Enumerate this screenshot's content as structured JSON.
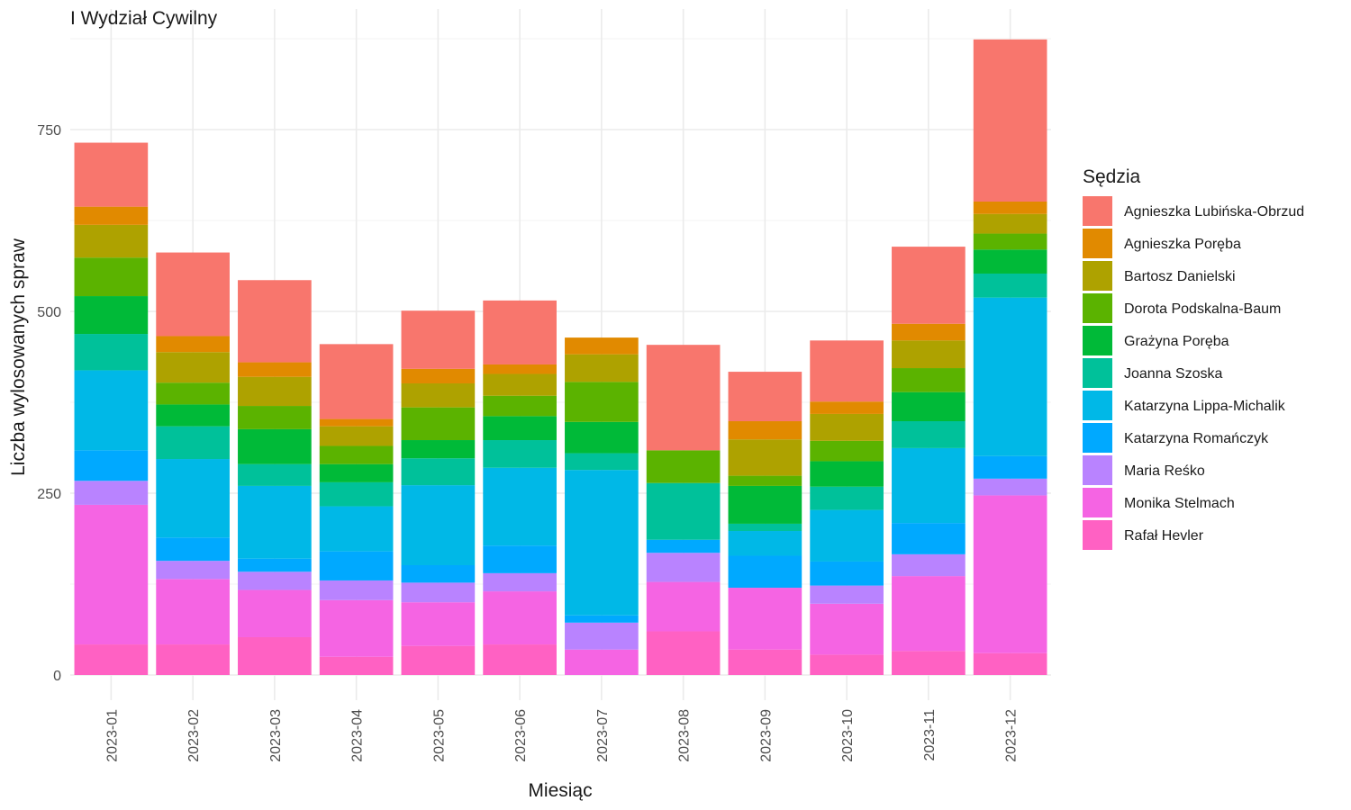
{
  "chart_data": {
    "type": "bar",
    "stacked": true,
    "title": "I Wydział Cywilny",
    "xlabel": "Miesiąc",
    "ylabel": "Liczba wylosowanych spraw",
    "ylim": [
      -35,
      890
    ],
    "yticks": [
      0,
      250,
      500,
      750
    ],
    "grid": true,
    "legend_title": "Sędzia",
    "legend_position": "right",
    "categories": [
      "2023-01",
      "2023-02",
      "2023-03",
      "2023-04",
      "2023-05",
      "2023-06",
      "2023-07",
      "2023-08",
      "2023-09",
      "2023-10",
      "2023-11",
      "2023-12"
    ],
    "series": [
      {
        "name": "Rafał Hevler",
        "color": "#FF61C3",
        "values": [
          42,
          42,
          52,
          25,
          40,
          42,
          0,
          60,
          35,
          28,
          33,
          30
        ]
      },
      {
        "name": "Monika Stelmach",
        "color": "#F564E3",
        "values": [
          192,
          90,
          65,
          78,
          60,
          73,
          35,
          68,
          85,
          70,
          103,
          217
        ]
      },
      {
        "name": "Maria Reśko",
        "color": "#B983FF",
        "values": [
          33,
          25,
          25,
          27,
          27,
          25,
          37,
          40,
          0,
          25,
          30,
          23
        ]
      },
      {
        "name": "Katarzyna Romańczyk",
        "color": "#00A9FF",
        "values": [
          42,
          32,
          18,
          40,
          24,
          38,
          10,
          18,
          44,
          33,
          43,
          31
        ]
      },
      {
        "name": "Katarzyna Lippa-Michalik",
        "color": "#00B8E7",
        "values": [
          110,
          108,
          100,
          62,
          110,
          107,
          200,
          0,
          34,
          71,
          103,
          218
        ]
      },
      {
        "name": "Joanna Szoska",
        "color": "#00C19A",
        "values": [
          50,
          45,
          30,
          33,
          37,
          38,
          23,
          78,
          10,
          32,
          37,
          33
        ]
      },
      {
        "name": "Grażyna Poręba",
        "color": "#00BA38",
        "values": [
          52,
          30,
          48,
          25,
          25,
          33,
          43,
          0,
          52,
          35,
          40,
          33
        ]
      },
      {
        "name": "Dorota Podskalna-Baum",
        "color": "#5BB300",
        "values": [
          53,
          30,
          32,
          25,
          45,
          28,
          55,
          45,
          14,
          28,
          33,
          22
        ]
      },
      {
        "name": "Bartosz Danielski",
        "color": "#AEA200",
        "values": [
          45,
          42,
          40,
          27,
          33,
          30,
          38,
          0,
          50,
          37,
          38,
          27
        ]
      },
      {
        "name": "Agnieszka Poręba",
        "color": "#E18A00",
        "values": [
          25,
          22,
          20,
          10,
          20,
          13,
          23,
          0,
          25,
          17,
          23,
          17
        ]
      },
      {
        "name": "Agnieszka Lubińska-Obrzud",
        "color": "#F8766D",
        "values": [
          88,
          115,
          113,
          103,
          80,
          88,
          0,
          145,
          68,
          84,
          106,
          223
        ]
      }
    ],
    "legend_order": [
      "Agnieszka Lubińska-Obrzud",
      "Agnieszka Poręba",
      "Bartosz Danielski",
      "Dorota Podskalna-Baum",
      "Grażyna Poręba",
      "Joanna Szoska",
      "Katarzyna Lippa-Michalik",
      "Katarzyna Romańczyk",
      "Maria Reśko",
      "Monika Stelmach",
      "Rafał Hevler"
    ]
  }
}
